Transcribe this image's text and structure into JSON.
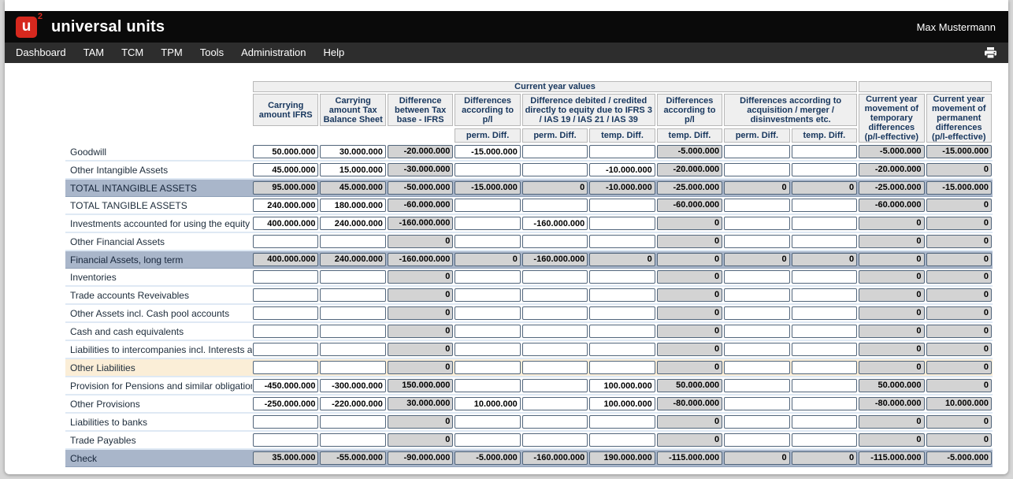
{
  "header": {
    "logo_letter": "u",
    "logo_sup": "2",
    "app_title": "universal units",
    "user": "Max Mustermann"
  },
  "nav": {
    "items": [
      "Dashboard",
      "TAM",
      "TCM",
      "TPM",
      "Tools",
      "Administration",
      "Help"
    ]
  },
  "colors": {
    "logo_red": "#d6281e",
    "topbar_black": "#0a0a0a",
    "navbar_gray": "#2d2d2d",
    "header_text_navy": "#17365d",
    "header_cell_bg": "#efefef",
    "calc_cell_bg": "#d3d3d3",
    "total_row_bg": "#a9b6ca",
    "accent_row_bg": "#fbeed7",
    "cell_border": "#51657b"
  },
  "table": {
    "group_header": "Current year values",
    "columns": [
      {
        "label": "Carrying amount IFRS"
      },
      {
        "label": "Carrying amount Tax Balance Sheet"
      },
      {
        "label": "Difference between Tax base - IFRS"
      },
      {
        "label": "Differences according to p/l"
      },
      {
        "label": "Difference debited / credited directly to equity due to IFRS 3 / IAS 19 / IAS 21 / IAS 39"
      },
      {
        "label": "Differences according to p/l"
      },
      {
        "label": "Differences according to acquisition / merger / disinvestments etc."
      },
      {
        "label": "Current year movement of temporary differences (p/l-effective)"
      },
      {
        "label": "Current year movement of permanent differences (p/l-effective)"
      }
    ],
    "subheaders": [
      "perm. Diff.",
      "perm. Diff.",
      "temp. Diff.",
      "temp. Diff.",
      "perm. Diff.",
      "temp. Diff."
    ],
    "rows": [
      {
        "label": "Goodwill",
        "style": "normal",
        "cells": [
          {
            "v": "50.000.000",
            "t": "e"
          },
          {
            "v": "30.000.000",
            "t": "e"
          },
          {
            "v": "-20.000.000",
            "t": "c"
          },
          {
            "v": "-15.000.000",
            "t": "e"
          },
          {
            "v": "",
            "t": "e"
          },
          {
            "v": "",
            "t": "e"
          },
          {
            "v": "-5.000.000",
            "t": "c"
          },
          {
            "v": "",
            "t": "e"
          },
          {
            "v": "",
            "t": "e"
          },
          {
            "v": "-5.000.000",
            "t": "c"
          },
          {
            "v": "-15.000.000",
            "t": "c"
          }
        ]
      },
      {
        "label": "Other Intangible Assets",
        "style": "normal",
        "cells": [
          {
            "v": "45.000.000",
            "t": "e"
          },
          {
            "v": "15.000.000",
            "t": "e"
          },
          {
            "v": "-30.000.000",
            "t": "c"
          },
          {
            "v": "",
            "t": "e"
          },
          {
            "v": "",
            "t": "e"
          },
          {
            "v": "-10.000.000",
            "t": "e"
          },
          {
            "v": "-20.000.000",
            "t": "c"
          },
          {
            "v": "",
            "t": "e"
          },
          {
            "v": "",
            "t": "e"
          },
          {
            "v": "-20.000.000",
            "t": "c"
          },
          {
            "v": "0",
            "t": "c"
          }
        ]
      },
      {
        "label": "TOTAL INTANGIBLE ASSETS",
        "style": "total",
        "cells": [
          {
            "v": "95.000.000",
            "t": "c"
          },
          {
            "v": "45.000.000",
            "t": "c"
          },
          {
            "v": "-50.000.000",
            "t": "c"
          },
          {
            "v": "-15.000.000",
            "t": "c"
          },
          {
            "v": "0",
            "t": "c"
          },
          {
            "v": "-10.000.000",
            "t": "c"
          },
          {
            "v": "-25.000.000",
            "t": "c"
          },
          {
            "v": "0",
            "t": "c"
          },
          {
            "v": "0",
            "t": "c"
          },
          {
            "v": "-25.000.000",
            "t": "c"
          },
          {
            "v": "-15.000.000",
            "t": "c"
          }
        ]
      },
      {
        "label": "TOTAL TANGIBLE ASSETS",
        "style": "normal",
        "cells": [
          {
            "v": "240.000.000",
            "t": "e"
          },
          {
            "v": "180.000.000",
            "t": "e"
          },
          {
            "v": "-60.000.000",
            "t": "c"
          },
          {
            "v": "",
            "t": "e"
          },
          {
            "v": "",
            "t": "e"
          },
          {
            "v": "",
            "t": "e"
          },
          {
            "v": "-60.000.000",
            "t": "c"
          },
          {
            "v": "",
            "t": "e"
          },
          {
            "v": "",
            "t": "e"
          },
          {
            "v": "-60.000.000",
            "t": "c"
          },
          {
            "v": "0",
            "t": "c"
          }
        ]
      },
      {
        "label": "Investments accounted for using the equity method",
        "style": "normal",
        "cells": [
          {
            "v": "400.000.000",
            "t": "e"
          },
          {
            "v": "240.000.000",
            "t": "e"
          },
          {
            "v": "-160.000.000",
            "t": "c"
          },
          {
            "v": "",
            "t": "e"
          },
          {
            "v": "-160.000.000",
            "t": "e"
          },
          {
            "v": "",
            "t": "e"
          },
          {
            "v": "0",
            "t": "c"
          },
          {
            "v": "",
            "t": "e"
          },
          {
            "v": "",
            "t": "e"
          },
          {
            "v": "0",
            "t": "c"
          },
          {
            "v": "0",
            "t": "c"
          }
        ]
      },
      {
        "label": "Other Financial Assets",
        "style": "normal",
        "cells": [
          {
            "v": "",
            "t": "e"
          },
          {
            "v": "",
            "t": "e"
          },
          {
            "v": "0",
            "t": "c"
          },
          {
            "v": "",
            "t": "e"
          },
          {
            "v": "",
            "t": "e"
          },
          {
            "v": "",
            "t": "e"
          },
          {
            "v": "0",
            "t": "c"
          },
          {
            "v": "",
            "t": "e"
          },
          {
            "v": "",
            "t": "e"
          },
          {
            "v": "0",
            "t": "c"
          },
          {
            "v": "0",
            "t": "c"
          }
        ]
      },
      {
        "label": "Financial Assets, long term",
        "style": "total",
        "cells": [
          {
            "v": "400.000.000",
            "t": "c"
          },
          {
            "v": "240.000.000",
            "t": "c"
          },
          {
            "v": "-160.000.000",
            "t": "c"
          },
          {
            "v": "0",
            "t": "c"
          },
          {
            "v": "-160.000.000",
            "t": "c"
          },
          {
            "v": "0",
            "t": "c"
          },
          {
            "v": "0",
            "t": "c"
          },
          {
            "v": "0",
            "t": "c"
          },
          {
            "v": "0",
            "t": "c"
          },
          {
            "v": "0",
            "t": "c"
          },
          {
            "v": "0",
            "t": "c"
          }
        ]
      },
      {
        "label": "Inventories",
        "style": "normal",
        "cells": [
          {
            "v": "",
            "t": "e"
          },
          {
            "v": "",
            "t": "e"
          },
          {
            "v": "0",
            "t": "c"
          },
          {
            "v": "",
            "t": "e"
          },
          {
            "v": "",
            "t": "e"
          },
          {
            "v": "",
            "t": "e"
          },
          {
            "v": "0",
            "t": "c"
          },
          {
            "v": "",
            "t": "e"
          },
          {
            "v": "",
            "t": "e"
          },
          {
            "v": "0",
            "t": "c"
          },
          {
            "v": "0",
            "t": "c"
          }
        ]
      },
      {
        "label": "Trade accounts Reveivables",
        "style": "normal",
        "cells": [
          {
            "v": "",
            "t": "e"
          },
          {
            "v": "",
            "t": "e"
          },
          {
            "v": "0",
            "t": "c"
          },
          {
            "v": "",
            "t": "e"
          },
          {
            "v": "",
            "t": "e"
          },
          {
            "v": "",
            "t": "e"
          },
          {
            "v": "0",
            "t": "c"
          },
          {
            "v": "",
            "t": "e"
          },
          {
            "v": "",
            "t": "e"
          },
          {
            "v": "0",
            "t": "c"
          },
          {
            "v": "0",
            "t": "c"
          }
        ]
      },
      {
        "label": "Other Assets incl. Cash pool accounts",
        "style": "normal",
        "cells": [
          {
            "v": "",
            "t": "e"
          },
          {
            "v": "",
            "t": "e"
          },
          {
            "v": "0",
            "t": "c"
          },
          {
            "v": "",
            "t": "e"
          },
          {
            "v": "",
            "t": "e"
          },
          {
            "v": "",
            "t": "e"
          },
          {
            "v": "0",
            "t": "c"
          },
          {
            "v": "",
            "t": "e"
          },
          {
            "v": "",
            "t": "e"
          },
          {
            "v": "0",
            "t": "c"
          },
          {
            "v": "0",
            "t": "c"
          }
        ]
      },
      {
        "label": "Cash and cash equivalents",
        "style": "normal",
        "cells": [
          {
            "v": "",
            "t": "e"
          },
          {
            "v": "",
            "t": "e"
          },
          {
            "v": "0",
            "t": "c"
          },
          {
            "v": "",
            "t": "e"
          },
          {
            "v": "",
            "t": "e"
          },
          {
            "v": "",
            "t": "e"
          },
          {
            "v": "0",
            "t": "c"
          },
          {
            "v": "",
            "t": "e"
          },
          {
            "v": "",
            "t": "e"
          },
          {
            "v": "0",
            "t": "c"
          },
          {
            "v": "0",
            "t": "c"
          }
        ]
      },
      {
        "label": "Liabilities to intercompanies incl. Interests and dividends",
        "style": "normal",
        "cells": [
          {
            "v": "",
            "t": "e"
          },
          {
            "v": "",
            "t": "e"
          },
          {
            "v": "0",
            "t": "c"
          },
          {
            "v": "",
            "t": "e"
          },
          {
            "v": "",
            "t": "e"
          },
          {
            "v": "",
            "t": "e"
          },
          {
            "v": "0",
            "t": "c"
          },
          {
            "v": "",
            "t": "e"
          },
          {
            "v": "",
            "t": "e"
          },
          {
            "v": "0",
            "t": "c"
          },
          {
            "v": "0",
            "t": "c"
          }
        ]
      },
      {
        "label": "Other Liabilities",
        "style": "accent",
        "cells": [
          {
            "v": "",
            "t": "e"
          },
          {
            "v": "",
            "t": "e"
          },
          {
            "v": "0",
            "t": "c"
          },
          {
            "v": "",
            "t": "e"
          },
          {
            "v": "",
            "t": "e"
          },
          {
            "v": "",
            "t": "e"
          },
          {
            "v": "0",
            "t": "c"
          },
          {
            "v": "",
            "t": "e"
          },
          {
            "v": "",
            "t": "e"
          },
          {
            "v": "0",
            "t": "c"
          },
          {
            "v": "0",
            "t": "c"
          }
        ]
      },
      {
        "label": "Provision for Pensions and similar obligations",
        "style": "normal",
        "cells": [
          {
            "v": "-450.000.000",
            "t": "e"
          },
          {
            "v": "-300.000.000",
            "t": "e"
          },
          {
            "v": "150.000.000",
            "t": "c"
          },
          {
            "v": "",
            "t": "e"
          },
          {
            "v": "",
            "t": "e"
          },
          {
            "v": "100.000.000",
            "t": "e"
          },
          {
            "v": "50.000.000",
            "t": "c"
          },
          {
            "v": "",
            "t": "e"
          },
          {
            "v": "",
            "t": "e"
          },
          {
            "v": "50.000.000",
            "t": "c"
          },
          {
            "v": "0",
            "t": "c"
          }
        ]
      },
      {
        "label": "Other Provisions",
        "style": "normal",
        "cells": [
          {
            "v": "-250.000.000",
            "t": "e"
          },
          {
            "v": "-220.000.000",
            "t": "e"
          },
          {
            "v": "30.000.000",
            "t": "c"
          },
          {
            "v": "10.000.000",
            "t": "e"
          },
          {
            "v": "",
            "t": "e"
          },
          {
            "v": "100.000.000",
            "t": "e"
          },
          {
            "v": "-80.000.000",
            "t": "c"
          },
          {
            "v": "",
            "t": "e"
          },
          {
            "v": "",
            "t": "e"
          },
          {
            "v": "-80.000.000",
            "t": "c"
          },
          {
            "v": "10.000.000",
            "t": "c"
          }
        ]
      },
      {
        "label": "Liabilities to banks",
        "style": "normal",
        "cells": [
          {
            "v": "",
            "t": "e"
          },
          {
            "v": "",
            "t": "e"
          },
          {
            "v": "0",
            "t": "c"
          },
          {
            "v": "",
            "t": "e"
          },
          {
            "v": "",
            "t": "e"
          },
          {
            "v": "",
            "t": "e"
          },
          {
            "v": "0",
            "t": "c"
          },
          {
            "v": "",
            "t": "e"
          },
          {
            "v": "",
            "t": "e"
          },
          {
            "v": "0",
            "t": "c"
          },
          {
            "v": "0",
            "t": "c"
          }
        ]
      },
      {
        "label": "Trade Payables",
        "style": "normal",
        "cells": [
          {
            "v": "",
            "t": "e"
          },
          {
            "v": "",
            "t": "e"
          },
          {
            "v": "0",
            "t": "c"
          },
          {
            "v": "",
            "t": "e"
          },
          {
            "v": "",
            "t": "e"
          },
          {
            "v": "",
            "t": "e"
          },
          {
            "v": "0",
            "t": "c"
          },
          {
            "v": "",
            "t": "e"
          },
          {
            "v": "",
            "t": "e"
          },
          {
            "v": "0",
            "t": "c"
          },
          {
            "v": "0",
            "t": "c"
          }
        ]
      },
      {
        "label": "Check",
        "style": "total",
        "cells": [
          {
            "v": "35.000.000",
            "t": "c"
          },
          {
            "v": "-55.000.000",
            "t": "c"
          },
          {
            "v": "-90.000.000",
            "t": "c"
          },
          {
            "v": "-5.000.000",
            "t": "c"
          },
          {
            "v": "-160.000.000",
            "t": "c"
          },
          {
            "v": "190.000.000",
            "t": "c"
          },
          {
            "v": "-115.000.000",
            "t": "c"
          },
          {
            "v": "0",
            "t": "c"
          },
          {
            "v": "0",
            "t": "c"
          },
          {
            "v": "-115.000.000",
            "t": "c"
          },
          {
            "v": "-5.000.000",
            "t": "c"
          }
        ]
      }
    ]
  }
}
